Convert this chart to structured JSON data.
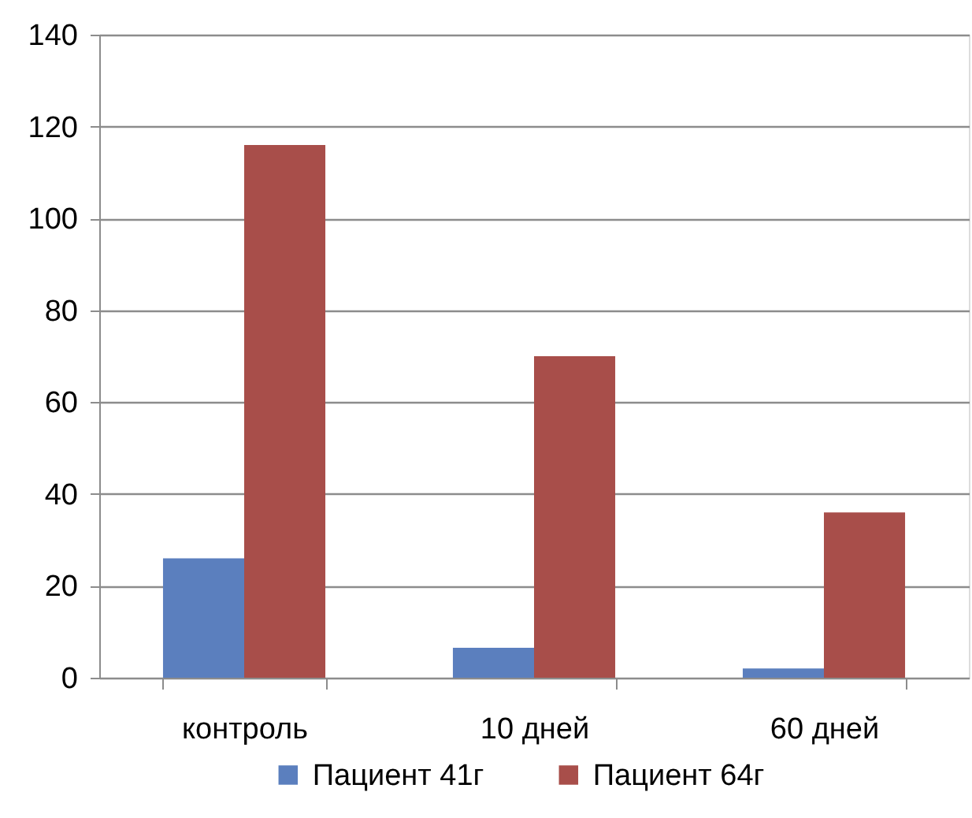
{
  "chart_data": {
    "type": "bar",
    "categories": [
      "контроль",
      "10 дней",
      "60 дней"
    ],
    "series": [
      {
        "name": "Пациент 41г",
        "color": "#5b7fbe",
        "values": [
          26,
          6.5,
          2
        ]
      },
      {
        "name": "Пациент 64г",
        "color": "#a84e4a",
        "values": [
          116,
          70,
          36
        ]
      }
    ],
    "ylim": [
      0,
      140
    ],
    "yticks": [
      0,
      20,
      40,
      60,
      80,
      100,
      120,
      140
    ],
    "grid": "y",
    "legend": "bottom"
  }
}
